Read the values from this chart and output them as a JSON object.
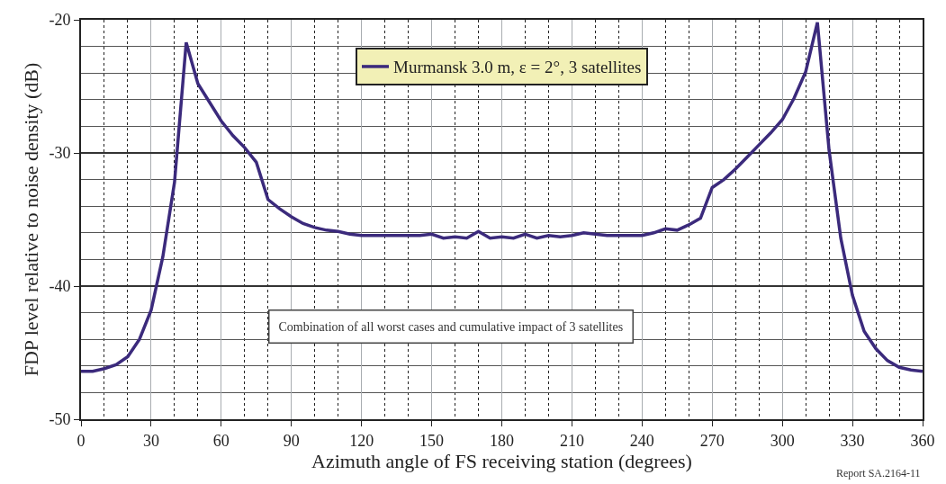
{
  "chart_data": {
    "type": "line",
    "xlabel": "Azimuth angle of FS receiving station (degrees)",
    "ylabel": "FDP level relative to noise density (dB)",
    "x": [
      0,
      5,
      10,
      15,
      20,
      25,
      30,
      35,
      40,
      45,
      50,
      55,
      60,
      65,
      70,
      75,
      80,
      85,
      90,
      95,
      100,
      105,
      110,
      115,
      120,
      125,
      130,
      135,
      140,
      145,
      150,
      155,
      160,
      165,
      170,
      175,
      180,
      185,
      190,
      195,
      200,
      205,
      210,
      215,
      220,
      225,
      230,
      235,
      240,
      245,
      250,
      255,
      260,
      265,
      270,
      275,
      280,
      285,
      290,
      295,
      300,
      305,
      310,
      315,
      320,
      325,
      330,
      335,
      340,
      345,
      350,
      355,
      360
    ],
    "series": [
      {
        "name": "Murmansk 3.0 m, ε = 2°, 3 satellites",
        "color": "#3b2a7c",
        "values": [
          -46.4,
          -46.4,
          -46.2,
          -45.9,
          -45.3,
          -44.0,
          -41.8,
          -37.8,
          -32.2,
          -21.7,
          -24.8,
          -26.2,
          -27.6,
          -28.7,
          -29.6,
          -30.7,
          -33.5,
          -34.2,
          -34.8,
          -35.3,
          -35.6,
          -35.8,
          -35.9,
          -36.1,
          -36.2,
          -36.2,
          -36.2,
          -36.2,
          -36.2,
          -36.2,
          -36.1,
          -36.4,
          -36.3,
          -36.4,
          -35.9,
          -36.4,
          -36.3,
          -36.4,
          -36.1,
          -36.4,
          -36.2,
          -36.3,
          -36.2,
          -36.0,
          -36.1,
          -36.2,
          -36.2,
          -36.2,
          -36.2,
          -36.0,
          -35.7,
          -35.8,
          -35.4,
          -34.9,
          -32.6,
          -32.0,
          -31.2,
          -30.3,
          -29.4,
          -28.5,
          -27.5,
          -25.9,
          -23.9,
          -20.2,
          -29.8,
          -36.4,
          -40.7,
          -43.4,
          -44.7,
          -45.6,
          -46.1,
          -46.3,
          -46.4
        ]
      }
    ],
    "xlim": [
      0,
      360
    ],
    "xticks": [
      0,
      30,
      60,
      90,
      120,
      150,
      180,
      210,
      240,
      270,
      300,
      330,
      360
    ],
    "ylim": [
      -50,
      -20
    ],
    "yticks": [
      -50,
      -40,
      -30,
      -20
    ],
    "grid": true,
    "legend": "top",
    "marker": "none",
    "line_style": "solid",
    "annotations": [
      "Combination of all worst cases and cumulative impact of 3 satellites",
      "Report SA.2164-11"
    ]
  }
}
